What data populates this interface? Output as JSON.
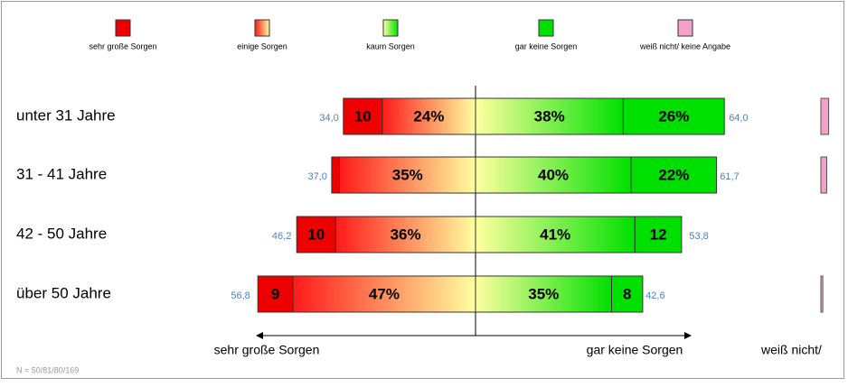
{
  "chart_data": {
    "type": "diverging-bar",
    "categories": [
      "unter 31 Jahre",
      "31 - 41 Jahre",
      "42 - 50 Jahre",
      "über 50 Jahre"
    ],
    "series": [
      {
        "name": "sehr große Sorgen",
        "side": "left",
        "color": [
          "#ee0000",
          "#ee0000"
        ],
        "values": [
          10,
          2,
          10,
          9
        ],
        "value_labels": [
          "10",
          null,
          "10",
          "9"
        ]
      },
      {
        "name": "einige Sorgen",
        "side": "left",
        "color": [
          "#ff1a1a",
          "#ffffa0"
        ],
        "values": [
          24,
          35,
          36,
          47
        ],
        "value_labels": [
          "24%",
          "35%",
          "36%",
          "47%"
        ]
      },
      {
        "name": "kaum Sorgen",
        "side": "right",
        "color": [
          "#ffffa0",
          "#00e000"
        ],
        "values": [
          38,
          40,
          41,
          35
        ],
        "value_labels": [
          "38%",
          "40%",
          "41%",
          "35%"
        ]
      },
      {
        "name": "gar keine Sorgen",
        "side": "right",
        "color": [
          "#00e000",
          "#00e000"
        ],
        "values": [
          26,
          22,
          12,
          8
        ],
        "value_labels": [
          "26%",
          "22%",
          "12",
          "8"
        ]
      },
      {
        "name": "weiß nicht/ keine Angabe",
        "side": "separate",
        "color": [
          "#f4a0c8",
          "#f4a0c8"
        ],
        "values": [
          2,
          1.5,
          0,
          0.5
        ]
      }
    ],
    "totals_left": {
      "values": [
        34.0,
        37.0,
        46.2,
        56.8
      ],
      "value_labels": [
        "34,0",
        "37,0",
        "46,2",
        "56,8"
      ]
    },
    "totals_right": {
      "values": [
        64.0,
        61.7,
        53.8,
        42.6
      ],
      "value_labels": [
        "64,0",
        "61,7",
        "53,8",
        "42,6"
      ]
    },
    "axis_labels": {
      "left": "sehr große Sorgen",
      "right": "gar keine Sorgen",
      "separate": "weiß nicht/"
    },
    "note": "N = 50/81/80/169"
  }
}
